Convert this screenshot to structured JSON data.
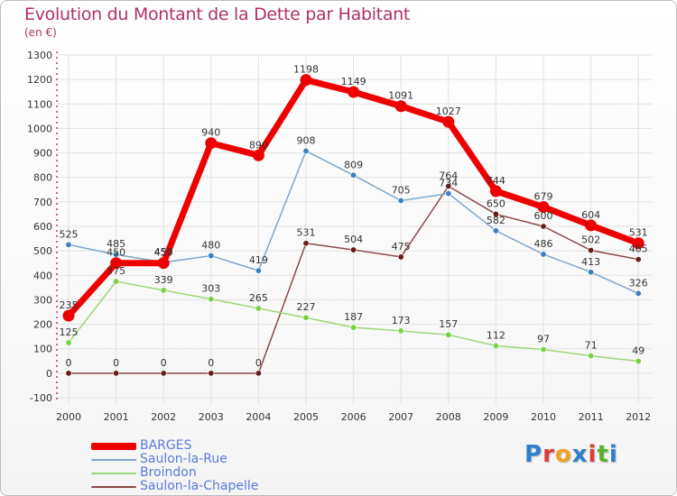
{
  "chart_title": "Evolution du Montant de la Dette par Habitant",
  "unit_label": "(en €)",
  "logo_text": "Proxiti",
  "colors": {
    "title": "#b0306a",
    "axis_text": "#333333",
    "grid": "#e2e2e2",
    "legend_text": "#5a7bd8",
    "logo": [
      "#2f7fd0",
      "#e03b3b",
      "#f0a020",
      "#2f7fd0",
      "#e03b3b",
      "#5cb030",
      "#2f7fd0"
    ]
  },
  "chart_data": {
    "type": "line",
    "title": "Evolution du Montant de la Dette par Habitant",
    "subtitle": "(en €)",
    "x": [
      "2000",
      "2001",
      "2002",
      "2003",
      "2004",
      "2005",
      "2006",
      "2007",
      "2008",
      "2009",
      "2010",
      "2011",
      "2012"
    ],
    "ylim": [
      -100,
      1300
    ],
    "yticks": [
      -100,
      0,
      100,
      200,
      300,
      400,
      500,
      600,
      700,
      800,
      900,
      1000,
      1100,
      1200,
      1300
    ],
    "grid": true,
    "legend_position": "bottom-left",
    "series": [
      {
        "name": "BARGES",
        "color": "#ee0000",
        "marker_color": "#ee0000",
        "width": 7,
        "values": [
          235,
          450,
          450,
          940,
          890,
          1198,
          1149,
          1091,
          1027,
          744,
          679,
          604,
          531
        ]
      },
      {
        "name": "Saulon-la-Rue",
        "color": "#7ea6cc",
        "marker_color": "#3c7fc0",
        "width": 1.5,
        "values": [
          525,
          485,
          453,
          480,
          419,
          908,
          809,
          705,
          734,
          582,
          486,
          413,
          326
        ]
      },
      {
        "name": "Broindon",
        "color": "#9ed67a",
        "marker_color": "#7ad040",
        "width": 1.5,
        "values": [
          125,
          375,
          339,
          303,
          265,
          227,
          187,
          173,
          157,
          112,
          97,
          71,
          49
        ]
      },
      {
        "name": "Saulon-la-Chapelle",
        "color": "#8a4a4a",
        "marker_color": "#6b1a1a",
        "width": 1.5,
        "values": [
          0,
          0,
          0,
          0,
          0,
          531,
          504,
          475,
          764,
          650,
          600,
          502,
          465
        ]
      }
    ],
    "data_labels": [
      [
        "235",
        "450",
        "450",
        "940",
        "890",
        "1198",
        "1149",
        "1091",
        "1027",
        "744",
        "679",
        "604",
        "531"
      ],
      [
        "525",
        "485",
        "453",
        "480",
        "419",
        "908",
        "809",
        "705",
        "734",
        "582",
        "486",
        "413",
        "326"
      ],
      [
        "125",
        "375",
        "339",
        "303",
        "265",
        "227",
        "187",
        "173",
        "157",
        "112",
        "97",
        "71",
        "49"
      ],
      [
        "0",
        "0",
        "0",
        "0",
        "0",
        "531",
        "504",
        "475",
        "764",
        "650",
        "600",
        "502",
        "465"
      ]
    ]
  }
}
